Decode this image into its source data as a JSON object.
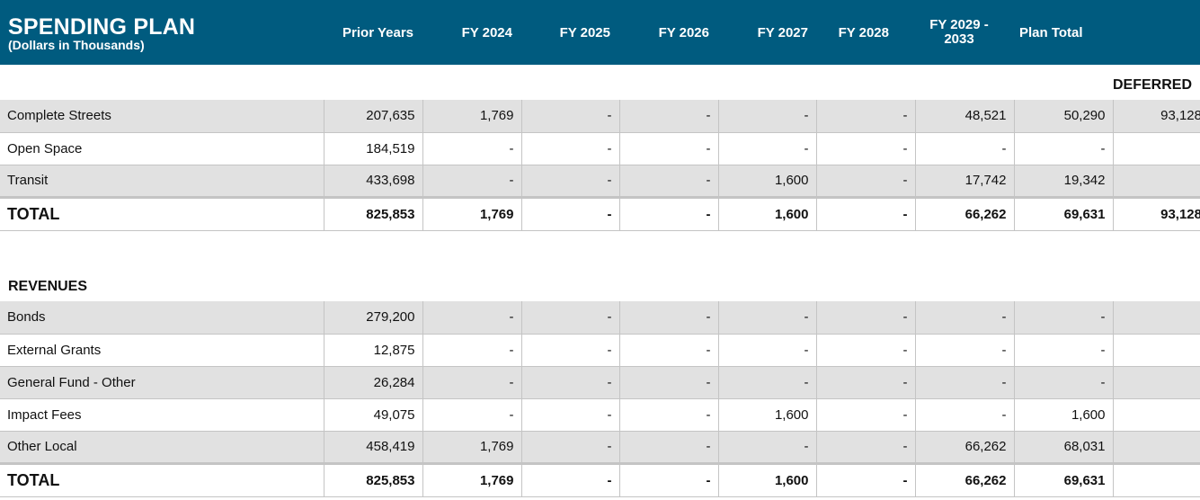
{
  "header": {
    "title": "SPENDING PLAN",
    "subtitle": "(Dollars in Thousands)",
    "columns": {
      "prior_years": "Prior Years",
      "fy2024": "FY 2024",
      "fy2025": "FY 2025",
      "fy2026": "FY 2026",
      "fy2027": "FY 2027",
      "fy2028": "FY 2028",
      "fy2029_line1": "FY 2029 -",
      "fy2029_line2": "2033",
      "plan_total": "Plan Total"
    }
  },
  "spending": {
    "deferred_label": "DEFERRED",
    "rows": [
      {
        "name": "Complete Streets",
        "values": [
          "207,635",
          "1,769",
          "-",
          "-",
          "-",
          "-",
          "48,521",
          "50,290",
          "93,128"
        ]
      },
      {
        "name": "Open Space",
        "values": [
          "184,519",
          "-",
          "-",
          "-",
          "-",
          "-",
          "-",
          "-",
          ""
        ]
      },
      {
        "name": "Transit",
        "values": [
          "433,698",
          "-",
          "-",
          "-",
          "1,600",
          "-",
          "17,742",
          "19,342",
          ""
        ]
      }
    ],
    "total": {
      "name": "TOTAL",
      "values": [
        "825,853",
        "1,769",
        "-",
        "-",
        "1,600",
        "-",
        "66,262",
        "69,631",
        "93,128"
      ]
    }
  },
  "revenues": {
    "label": "REVENUES",
    "rows": [
      {
        "name": "Bonds",
        "values": [
          "279,200",
          "-",
          "-",
          "-",
          "-",
          "-",
          "-",
          "-",
          ""
        ]
      },
      {
        "name": "External Grants",
        "values": [
          "12,875",
          "-",
          "-",
          "-",
          "-",
          "-",
          "-",
          "-",
          ""
        ]
      },
      {
        "name": "General Fund - Other",
        "values": [
          "26,284",
          "-",
          "-",
          "-",
          "-",
          "-",
          "-",
          "-",
          ""
        ]
      },
      {
        "name": "Impact Fees",
        "values": [
          "49,075",
          "-",
          "-",
          "-",
          "1,600",
          "-",
          "-",
          "1,600",
          ""
        ]
      },
      {
        "name": "Other Local",
        "values": [
          "458,419",
          "1,769",
          "-",
          "-",
          "-",
          "-",
          "66,262",
          "68,031",
          ""
        ]
      }
    ],
    "total": {
      "name": "TOTAL",
      "values": [
        "825,853",
        "1,769",
        "-",
        "-",
        "1,600",
        "-",
        "66,262",
        "69,631",
        ""
      ]
    }
  }
}
